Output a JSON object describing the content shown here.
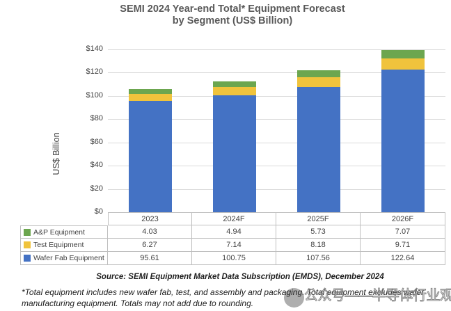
{
  "title": {
    "line1": "SEMI 2024 Year-end Total* Equipment Forecast",
    "line2": "by Segment (US$ Billion)"
  },
  "chart_data": {
    "type": "bar",
    "stacked": true,
    "categories": [
      "2023",
      "2024F",
      "2025F",
      "2026F"
    ],
    "series": [
      {
        "name": "A&P Equipment",
        "color": "#6CA64F",
        "values": [
          4.03,
          4.94,
          5.73,
          7.07
        ]
      },
      {
        "name": "Test Equipment",
        "color": "#F0C33C",
        "values": [
          6.27,
          7.14,
          8.18,
          9.71
        ]
      },
      {
        "name": "Wafer Fab Equipment",
        "color": "#4472C4",
        "values": [
          95.61,
          100.75,
          107.56,
          122.64
        ]
      }
    ],
    "ylabel": "US$ Billion",
    "ylim": [
      0,
      140
    ],
    "ytick_step": 20,
    "ytick_prefix": "$",
    "grid": true,
    "legend_position": "table-left-column"
  },
  "source_line": "Source: SEMI Equipment Market Data Subscription (EMDS), December 2024",
  "footnote": {
    "line1": "*Total equipment includes new wafer fab, test, and assembly and packaging. Total equipment excludes wafer",
    "line2": "manufacturing equipment. Totals may not add due to rounding."
  },
  "watermark": {
    "logo": "gray-circle-logo",
    "text": "公众号——半导体行业观察"
  }
}
